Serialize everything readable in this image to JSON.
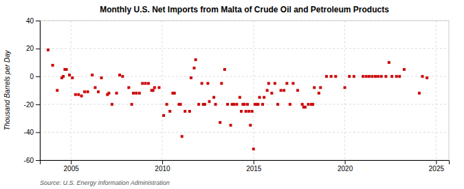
{
  "chart_data": {
    "type": "scatter",
    "title": "Monthly U.S. Net Imports from Malta of Crude Oil and Petroleum Products",
    "ylabel": "Thousand Barrels per Day",
    "annotations": [
      "Source: U.S. Energy Information Administration"
    ],
    "color": "#cc0000",
    "marker": "square",
    "grid": true,
    "xlim": [
      2003.3,
      2025.7
    ],
    "xticks": [
      2005,
      2010,
      2015,
      2020,
      2025
    ],
    "ylim": [
      -60,
      40
    ],
    "yticks": [
      -60,
      -40,
      -20,
      0,
      20,
      40
    ],
    "x": [
      2003.75,
      2004.0,
      2004.25,
      2004.5,
      2004.58,
      2004.67,
      2004.75,
      2004.92,
      2005.08,
      2005.25,
      2005.42,
      2005.58,
      2005.75,
      2005.92,
      2006.17,
      2006.33,
      2006.5,
      2006.67,
      2007.0,
      2007.08,
      2007.25,
      2007.5,
      2007.67,
      2007.83,
      2008.17,
      2008.33,
      2008.42,
      2008.58,
      2008.75,
      2008.92,
      2009.08,
      2009.25,
      2009.42,
      2009.5,
      2009.58,
      2009.83,
      2010.08,
      2010.25,
      2010.42,
      2010.58,
      2010.67,
      2010.92,
      2011.0,
      2011.08,
      2011.25,
      2011.5,
      2011.58,
      2011.75,
      2011.83,
      2012.0,
      2012.17,
      2012.25,
      2012.33,
      2012.5,
      2012.58,
      2012.83,
      2012.92,
      2013.17,
      2013.25,
      2013.42,
      2013.58,
      2013.75,
      2013.83,
      2013.92,
      2014.08,
      2014.25,
      2014.33,
      2014.42,
      2014.5,
      2014.58,
      2014.67,
      2014.75,
      2014.83,
      2014.92,
      2015.0,
      2015.08,
      2015.17,
      2015.25,
      2015.33,
      2015.5,
      2015.58,
      2015.75,
      2015.83,
      2016.0,
      2016.17,
      2016.33,
      2016.5,
      2016.67,
      2016.83,
      2017.0,
      2017.17,
      2017.42,
      2017.67,
      2017.75,
      2017.83,
      2018.0,
      2018.17,
      2018.25,
      2018.33,
      2018.58,
      2018.67,
      2019.0,
      2019.25,
      2019.5,
      2020.0,
      2020.25,
      2020.5,
      2021.0,
      2021.17,
      2021.33,
      2021.5,
      2021.67,
      2021.83,
      2022.0,
      2022.25,
      2022.42,
      2022.58,
      2022.83,
      2023.0,
      2023.25,
      2024.08,
      2024.25,
      2024.5
    ],
    "values": [
      19,
      8,
      -10,
      -1,
      0,
      5,
      5,
      1,
      -1,
      -13,
      -13,
      -14,
      -11,
      -11,
      1,
      -8,
      -11,
      -1,
      -13,
      -12,
      -20,
      -12,
      1,
      0,
      -8,
      -20,
      -12,
      -12,
      -12,
      -5,
      -5,
      -5,
      -10,
      -10,
      -8,
      -8,
      -28,
      -20,
      -25,
      -12,
      -12,
      -20,
      -20,
      -43,
      -25,
      -25,
      -1,
      6,
      12,
      -20,
      -5,
      -20,
      -20,
      -5,
      -18,
      -15,
      -20,
      -33,
      -5,
      5,
      -20,
      -35,
      -20,
      -20,
      -20,
      -15,
      -25,
      -20,
      -20,
      -25,
      -20,
      -25,
      -35,
      -25,
      -52,
      -20,
      -20,
      -20,
      -15,
      -20,
      -15,
      -10,
      -5,
      -12,
      -5,
      -20,
      -10,
      -10,
      -5,
      -20,
      -5,
      -10,
      -20,
      -22,
      -22,
      -20,
      -20,
      -20,
      -8,
      -12,
      -8,
      0,
      0,
      0,
      -8,
      0,
      0,
      0,
      0,
      0,
      0,
      0,
      0,
      0,
      0,
      10,
      0,
      0,
      0,
      5,
      -12,
      0,
      -1
    ]
  }
}
